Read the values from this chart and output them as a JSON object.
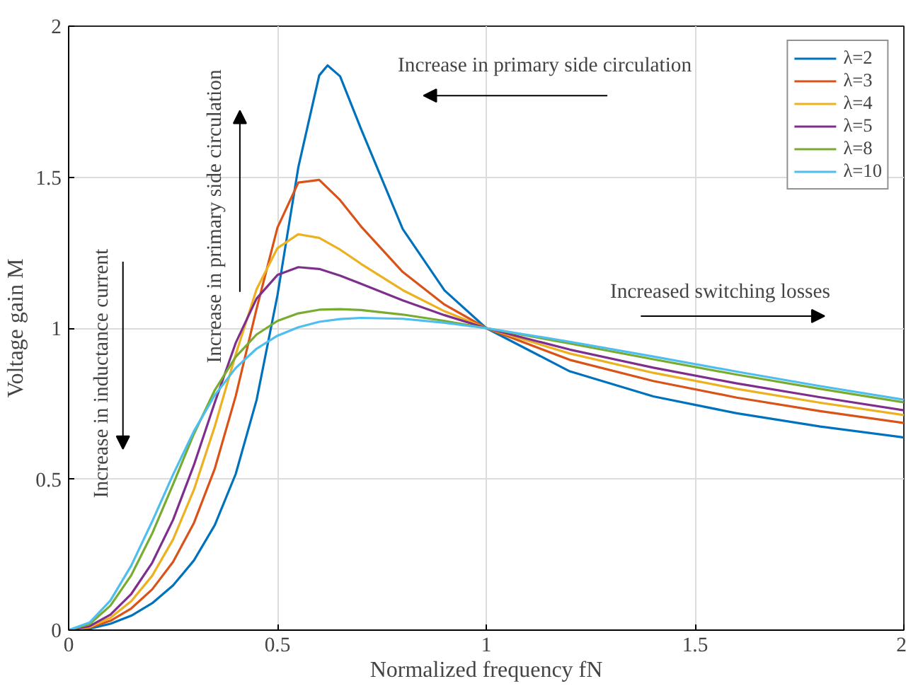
{
  "chart_data": {
    "type": "line",
    "xlabel": "Normalized frequency fN",
    "ylabel": "Voltage gain M",
    "x": [
      0,
      0.05,
      0.1,
      0.15,
      0.2,
      0.25,
      0.3,
      0.35,
      0.4,
      0.45,
      0.5,
      0.55,
      0.6,
      0.65,
      0.7,
      0.8,
      0.9,
      1,
      1.2,
      1.4,
      1.6,
      1.8,
      2
    ],
    "series": [
      {
        "name": "λ=2",
        "color": "#0072bd",
        "x": [
          0,
          0.05,
          0.1,
          0.15,
          0.2,
          0.25,
          0.3,
          0.35,
          0.4,
          0.45,
          0.5,
          0.55,
          0.6,
          0.62,
          0.65,
          0.7,
          0.8,
          0.9,
          1,
          1.2,
          1.4,
          1.6,
          1.8,
          2
        ],
        "values": [
          0,
          0.005,
          0.021,
          0.048,
          0.089,
          0.148,
          0.231,
          0.348,
          0.517,
          0.762,
          1.109,
          1.533,
          1.837,
          1.87,
          1.834,
          1.66,
          1.328,
          1.125,
          1,
          0.857,
          0.774,
          0.718,
          0.674,
          0.638
        ]
      },
      {
        "name": "λ=3",
        "color": "#d95319",
        "values": [
          0,
          0.008,
          0.031,
          0.072,
          0.135,
          0.226,
          0.355,
          0.535,
          0.775,
          1.064,
          1.333,
          1.482,
          1.491,
          1.424,
          1.337,
          1.186,
          1.078,
          1,
          0.895,
          0.825,
          0.77,
          0.725,
          0.686
        ]
      },
      {
        "name": "λ=4",
        "color": "#edb120",
        "values": [
          0,
          0.01,
          0.041,
          0.096,
          0.18,
          0.3,
          0.465,
          0.675,
          0.913,
          1.129,
          1.265,
          1.311,
          1.299,
          1.26,
          1.213,
          1.126,
          1.056,
          1,
          0.916,
          0.852,
          0.799,
          0.753,
          0.712
        ]
      },
      {
        "name": "λ=5",
        "color": "#7e2f8e",
        "values": [
          0,
          0.013,
          0.051,
          0.12,
          0.223,
          0.365,
          0.547,
          0.754,
          0.951,
          1.098,
          1.176,
          1.202,
          1.196,
          1.174,
          1.147,
          1.092,
          1.043,
          1,
          0.929,
          0.869,
          0.817,
          0.771,
          0.728
        ]
      },
      {
        "name": "λ=8",
        "color": "#77ac30",
        "values": [
          0,
          0.02,
          0.081,
          0.182,
          0.32,
          0.483,
          0.65,
          0.795,
          0.905,
          0.979,
          1.024,
          1.049,
          1.061,
          1.063,
          1.06,
          1.045,
          1.024,
          1,
          0.949,
          0.897,
          0.846,
          0.799,
          0.754
        ]
      },
      {
        "name": "λ=10",
        "color": "#4dbeee",
        "values": [
          0,
          0.025,
          0.098,
          0.214,
          0.36,
          0.515,
          0.659,
          0.778,
          0.868,
          0.932,
          0.975,
          1.003,
          1.021,
          1.03,
          1.034,
          1.031,
          1.018,
          1,
          0.955,
          0.906,
          0.856,
          0.808,
          0.763
        ]
      }
    ],
    "xlim": [
      0,
      2
    ],
    "ylim": [
      0,
      2
    ],
    "xticks": [
      0,
      0.5,
      1,
      1.5,
      2
    ],
    "yticks": [
      0,
      0.5,
      1,
      1.5,
      2
    ],
    "grid": true,
    "legend": "top right",
    "line_style": "solid",
    "marker": "none",
    "annotations": [
      "Increase in primary side circulation",
      "Increase in primary side circulation",
      "Increase in inductance current",
      "Increased switching losses"
    ]
  }
}
